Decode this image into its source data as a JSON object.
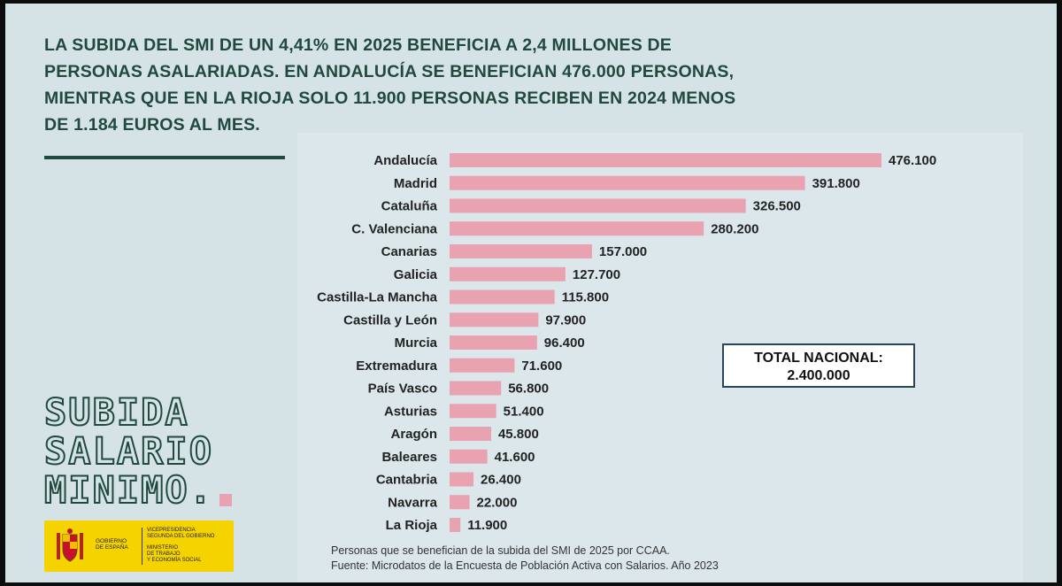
{
  "headline": {
    "line1": "LA SUBIDA DEL SMI DE UN 4,41% EN 2025 BENEFICIA A 2,4 MILLONES DE",
    "line2": "PERSONAS ASALARIADAS. EN ANDALUCÍA SE BENEFICIAN 476.000 PERSONAS,",
    "line3": "MIENTRAS QUE EN LA RIOJA SOLO 11.900 PERSONAS RECIBEN EN 2024 MENOS",
    "line4": "DE 1.184 EUROS AL MES."
  },
  "total_box": {
    "label": "TOTAL NACIONAL:",
    "value": "2.400.000"
  },
  "caption": {
    "line1": "Personas que se benefician de la subida del SMI de 2025 por CCAA.",
    "line2": "Fuente: Microdatos de la Encuesta de Población Activa con Salarios. Año 2023"
  },
  "brand": {
    "line1": "SUBIDA",
    "line2": "SALARIO",
    "line3": "MINIMO."
  },
  "government": {
    "gov_line1": "GOBIERNO",
    "gov_line2": "DE ESPAÑA",
    "vp_line1": "VICEPRESIDENCIA",
    "vp_line2": "SEGUNDA DEL GOBIERNO",
    "min_line1": "MINISTERIO",
    "min_line2": "DE TRABAJO",
    "min_line3": "Y ECONOMÍA SOCIAL"
  },
  "colors": {
    "bar": "#e8a2b0",
    "headline": "#1f4a3d",
    "label": "#222222",
    "panel": "#dce7eb"
  },
  "chart_data": {
    "type": "bar",
    "orientation": "horizontal",
    "title": "Personas que se benefician de la subida del SMI de 2025 por CCAA.",
    "xlabel": "",
    "ylabel": "",
    "xlim": [
      0,
      476100
    ],
    "categories": [
      "Andalucía",
      "Madrid",
      "Cataluña",
      "C. Valenciana",
      "Canarias",
      "Galicia",
      "Castilla-La Mancha",
      "Castilla y León",
      "Murcia",
      "Extremadura",
      "País Vasco",
      "Asturias",
      "Aragón",
      "Baleares",
      "Cantabria",
      "Navarra",
      "La Rioja"
    ],
    "values": [
      476100,
      391800,
      326500,
      280200,
      157000,
      127700,
      115800,
      97900,
      96400,
      71600,
      56800,
      51400,
      45800,
      41600,
      26400,
      22000,
      11900
    ],
    "value_labels": [
      "476.100",
      "391.800",
      "326.500",
      "280.200",
      "157.000",
      "127.700",
      "115.800",
      "97.900",
      "96.400",
      "71.600",
      "56.800",
      "51.400",
      "45.800",
      "41.600",
      "26.400",
      "22.000",
      "11.900"
    ]
  }
}
